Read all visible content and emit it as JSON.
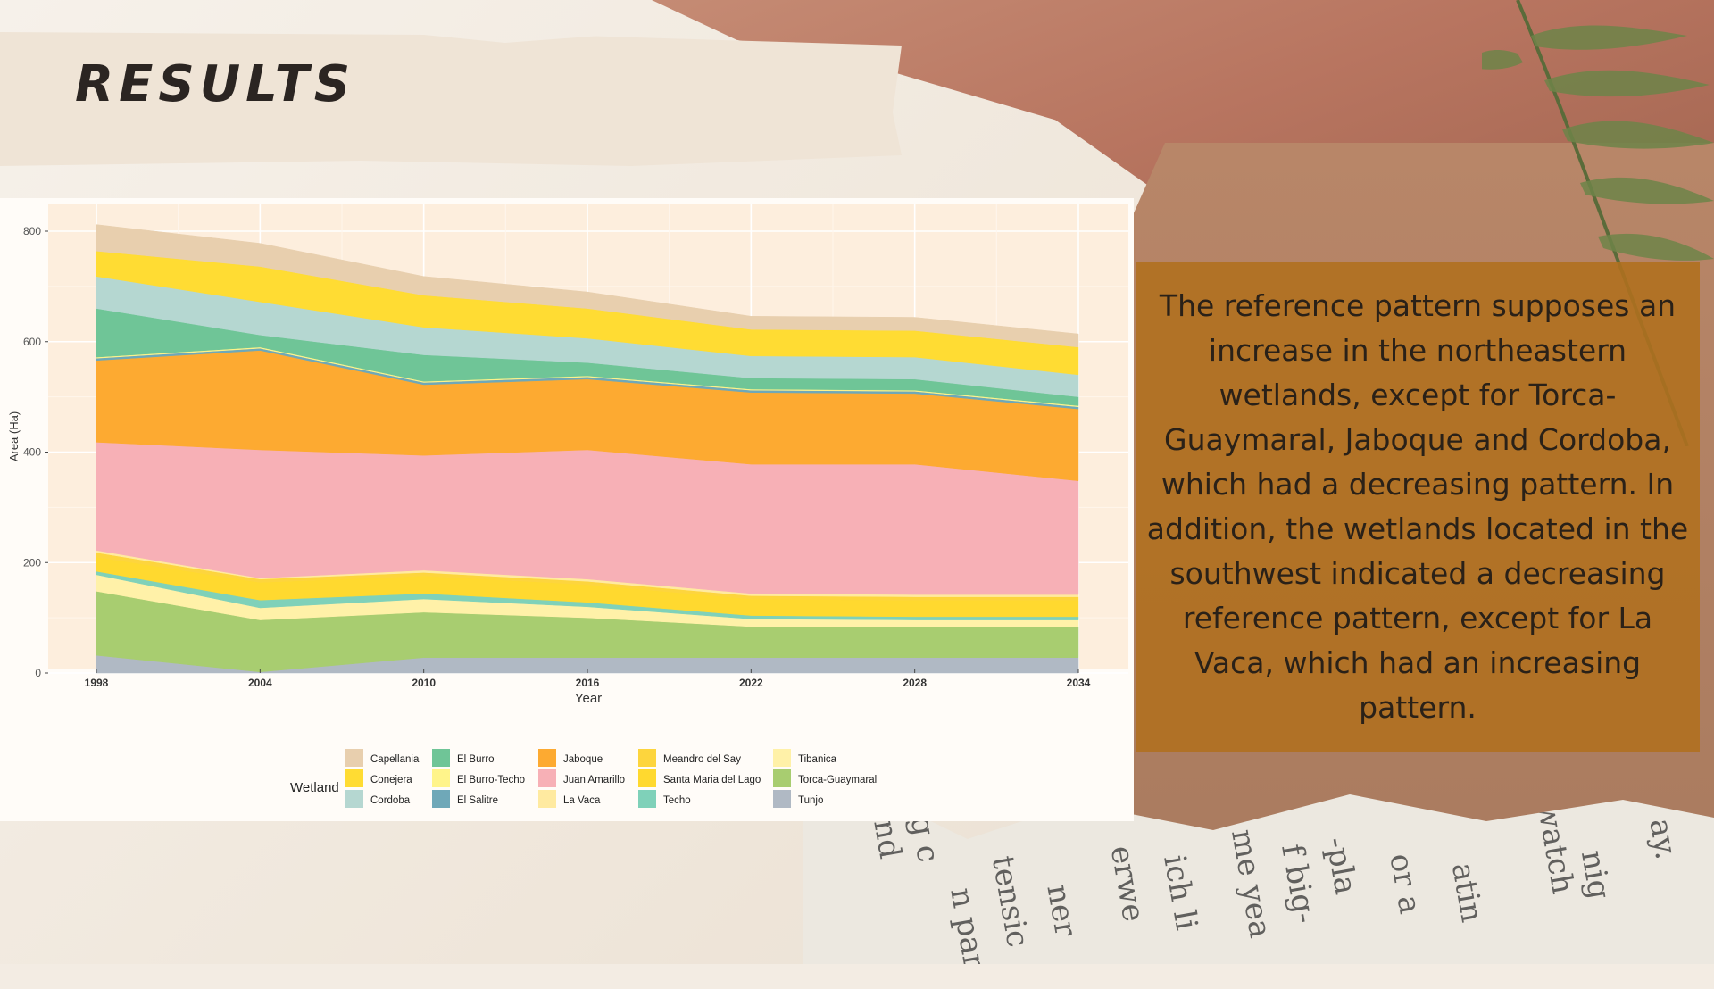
{
  "slide": {
    "title": "RESULTS",
    "body_text": "The reference pattern supposes an increase in the northeastern wetlands, except for Torca-Guaymaral, Jaboque and Cordoba, which had a decreasing pattern. In addition, the wetlands located in the southwest indicated a decreasing reference pattern, except for La Vaca, which had an increasing pattern.",
    "newsprint_fragments": [
      "and",
      "g c",
      "ner",
      "erwe",
      "ich li",
      "tensic",
      "n para",
      "me yea",
      "f big-",
      "-pla",
      "or a",
      "atin",
      "watch",
      "nig",
      "ay."
    ]
  },
  "chart_data": {
    "type": "area",
    "xlabel": "Year",
    "ylabel": "Area (Ha)",
    "x": [
      1998,
      2004,
      2010,
      2016,
      2022,
      2028,
      2034
    ],
    "x_ticks": [
      "1998",
      "2004",
      "2010",
      "2016",
      "2022",
      "2028",
      "2034"
    ],
    "xlim": [
      1998,
      2034
    ],
    "ylim": [
      0,
      800
    ],
    "y_ticks": [
      "0",
      "200",
      "400",
      "600",
      "800"
    ],
    "grid": true,
    "stacked": true,
    "legend": {
      "title": "Wetland",
      "position": "bottom"
    },
    "series": [
      {
        "name": "Tunjo",
        "color": "#b0b9c4",
        "values": [
          32,
          2,
          28,
          28,
          28,
          28,
          28
        ]
      },
      {
        "name": "Torca-Guaymaral",
        "color": "#a8cd70",
        "values": [
          116,
          94,
          82,
          72,
          56,
          56,
          56
        ]
      },
      {
        "name": "Tibanica",
        "color": "#fff1a8",
        "values": [
          30,
          22,
          24,
          20,
          14,
          12,
          12
        ]
      },
      {
        "name": "Techo",
        "color": "#7fd1b9",
        "values": [
          6,
          14,
          10,
          8,
          6,
          6,
          6
        ]
      },
      {
        "name": "Santa Maria del Lago",
        "color": "#ffd92f",
        "values": [
          26,
          32,
          32,
          32,
          30,
          30,
          30
        ]
      },
      {
        "name": "Meandro del Say",
        "color": "#fdd53d",
        "values": [
          8,
          6,
          6,
          6,
          6,
          6,
          6
        ]
      },
      {
        "name": "La Vaca",
        "color": "#ffeaa0",
        "values": [
          4,
          2,
          4,
          4,
          4,
          4,
          4
        ]
      },
      {
        "name": "Juan Amarillo",
        "color": "#f7b0b6",
        "values": [
          196,
          232,
          208,
          234,
          234,
          236,
          206
        ]
      },
      {
        "name": "Jaboque",
        "color": "#fdaa31",
        "values": [
          148,
          180,
          128,
          128,
          130,
          128,
          130
        ]
      },
      {
        "name": "El Salitre",
        "color": "#6fa8b8",
        "values": [
          4,
          4,
          4,
          4,
          4,
          4,
          4
        ]
      },
      {
        "name": "El Burro-Techo",
        "color": "#fff48a",
        "values": [
          2,
          2,
          2,
          2,
          2,
          2,
          2
        ]
      },
      {
        "name": "El Burro",
        "color": "#6fc597",
        "values": [
          88,
          22,
          48,
          24,
          20,
          20,
          16
        ]
      },
      {
        "name": "Cordoba",
        "color": "#b5d7d1",
        "values": [
          58,
          60,
          50,
          44,
          40,
          40,
          40
        ]
      },
      {
        "name": "Conejera",
        "color": "#ffdc33",
        "values": [
          46,
          64,
          58,
          54,
          48,
          48,
          50
        ]
      },
      {
        "name": "Capellania",
        "color": "#e8cfae",
        "values": [
          48,
          42,
          34,
          30,
          24,
          24,
          24
        ]
      }
    ],
    "legend_order": [
      [
        "Capellania",
        "Conejera",
        "Cordoba"
      ],
      [
        "El Burro",
        "El Burro-Techo",
        "El Salitre"
      ],
      [
        "Jaboque",
        "Juan Amarillo",
        "La Vaca"
      ],
      [
        "Meandro del Say",
        "Santa Maria del Lago",
        "Techo"
      ],
      [
        "Tibanica",
        "Torca-Guaymaral",
        "Tunjo"
      ]
    ]
  }
}
